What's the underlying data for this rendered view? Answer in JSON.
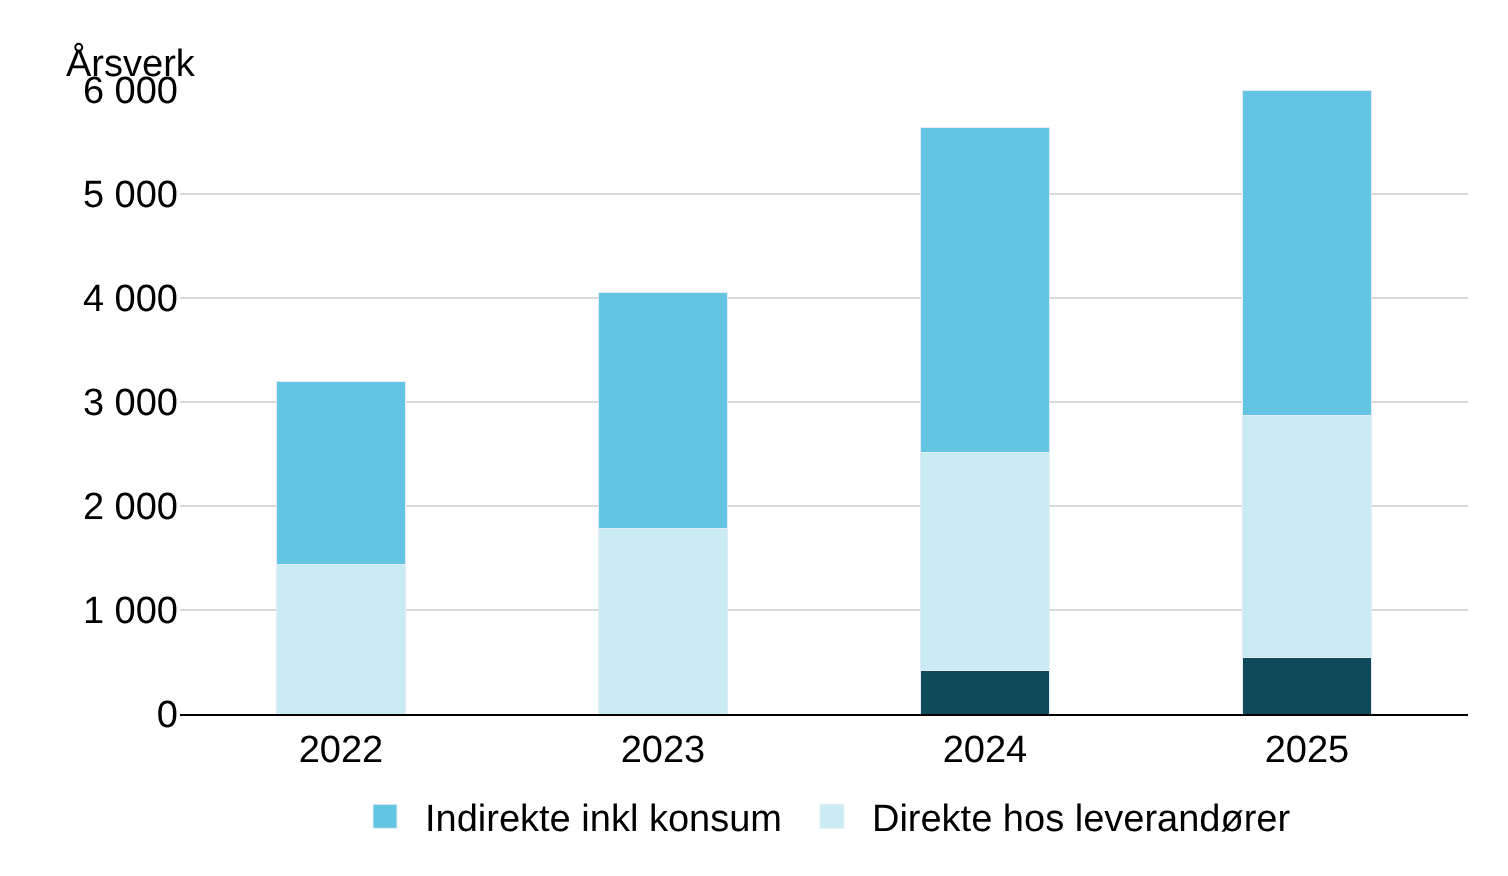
{
  "chart_data": {
    "type": "bar",
    "stacked": true,
    "ylabel": "Årsverk",
    "categories": [
      "2022",
      "2023",
      "2024",
      "2025"
    ],
    "series": [
      {
        "color": "#0f4a5a",
        "values": [
          0,
          0,
          420,
          540
        ]
      },
      {
        "name": "Direkte hos leverandører",
        "color": "#c9ebf4",
        "values": [
          1440,
          1780,
          2090,
          2330
        ]
      },
      {
        "name": "Indirekte inkl konsum",
        "color": "#62c6e3",
        "values": [
          1760,
          2270,
          3130,
          3130
        ]
      }
    ],
    "ylim": [
      0,
      6000
    ],
    "yticks": [
      0,
      {
        "value": 1000,
        "label": "1 000"
      },
      {
        "value": 2000,
        "label": "2 000"
      },
      {
        "value": 3000,
        "label": "3 000"
      },
      {
        "value": 4000,
        "label": "4 000"
      },
      {
        "value": 5000,
        "label": "5 000"
      },
      {
        "value": 6000,
        "label": "6 000"
      }
    ],
    "grid": "y",
    "legend": "bottom"
  }
}
